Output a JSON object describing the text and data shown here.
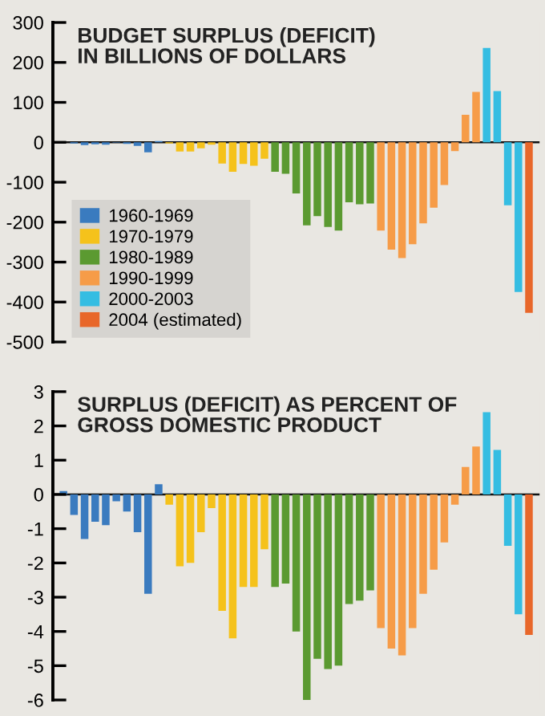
{
  "chart_data": [
    {
      "type": "bar",
      "title": "BUDGET SURPLUS (DEFICIT)\nIN BILLIONS OF DOLLARS",
      "categories": [
        null,
        null,
        null,
        null,
        null,
        null,
        null,
        null,
        null,
        null,
        null,
        null,
        null,
        null,
        null,
        null,
        null,
        null,
        null,
        null,
        null,
        null,
        null,
        null,
        null,
        null,
        null,
        null,
        null,
        null,
        null,
        null,
        null,
        null,
        null,
        null,
        null,
        null,
        null,
        null,
        null,
        null,
        null,
        null,
        null
      ],
      "series": [
        {
          "name": "1960-1969",
          "color": "#3a7bbf",
          "values": [
            0,
            -3,
            -7,
            -5,
            -6,
            -1,
            -4,
            -9,
            -25,
            3,
            null,
            null,
            null,
            null,
            null,
            null,
            null,
            null,
            null,
            null,
            null,
            null,
            null,
            null,
            null,
            null,
            null,
            null,
            null,
            null,
            null,
            null,
            null,
            null,
            null,
            null,
            null,
            null,
            null,
            null,
            null,
            null,
            null,
            null,
            null
          ]
        },
        {
          "name": "1970-1979",
          "color": "#f5c21b",
          "values": [
            null,
            null,
            null,
            null,
            null,
            null,
            null,
            null,
            null,
            null,
            -3,
            -23,
            -23,
            -15,
            -6,
            -53,
            -74,
            -54,
            -59,
            -41,
            null,
            null,
            null,
            null,
            null,
            null,
            null,
            null,
            null,
            null,
            null,
            null,
            null,
            null,
            null,
            null,
            null,
            null,
            null,
            null,
            null,
            null,
            null,
            null,
            null
          ]
        },
        {
          "name": "1980-1989",
          "color": "#5b9a31",
          "values": [
            null,
            null,
            null,
            null,
            null,
            null,
            null,
            null,
            null,
            null,
            null,
            null,
            null,
            null,
            null,
            null,
            null,
            null,
            null,
            null,
            -74,
            -79,
            -128,
            -208,
            -185,
            -212,
            -221,
            -150,
            -155,
            -153,
            null,
            null,
            null,
            null,
            null,
            null,
            null,
            null,
            null,
            null,
            null,
            null,
            null,
            null,
            null
          ]
        },
        {
          "name": "1990-1999",
          "color": "#f69c48",
          "values": [
            null,
            null,
            null,
            null,
            null,
            null,
            null,
            null,
            null,
            null,
            null,
            null,
            null,
            null,
            null,
            null,
            null,
            null,
            null,
            null,
            null,
            null,
            null,
            null,
            null,
            null,
            null,
            null,
            null,
            null,
            -221,
            -269,
            -290,
            -255,
            -203,
            -164,
            -107,
            -22,
            69,
            126,
            null,
            null,
            null,
            null,
            null
          ]
        },
        {
          "name": "2000-2003",
          "color": "#35bde2",
          "values": [
            null,
            null,
            null,
            null,
            null,
            null,
            null,
            null,
            null,
            null,
            null,
            null,
            null,
            null,
            null,
            null,
            null,
            null,
            null,
            null,
            null,
            null,
            null,
            null,
            null,
            null,
            null,
            null,
            null,
            null,
            null,
            null,
            null,
            null,
            null,
            null,
            null,
            null,
            null,
            null,
            236,
            128,
            -158,
            -375,
            null
          ]
        },
        {
          "name": "2004 (estimated)",
          "color": "#e8672a",
          "values": [
            null,
            null,
            null,
            null,
            null,
            null,
            null,
            null,
            null,
            null,
            null,
            null,
            null,
            null,
            null,
            null,
            null,
            null,
            null,
            null,
            null,
            null,
            null,
            null,
            null,
            null,
            null,
            null,
            null,
            null,
            null,
            null,
            null,
            null,
            null,
            null,
            null,
            null,
            null,
            null,
            null,
            null,
            null,
            null,
            -427
          ]
        }
      ],
      "ylim": [
        -500,
        300
      ],
      "yticks": [
        -500,
        -400,
        -300,
        -200,
        -100,
        0,
        100,
        200,
        300
      ],
      "legend": "bottom left",
      "ref_lines": [
        {
          "axis": "y",
          "value": 0
        }
      ]
    },
    {
      "type": "bar",
      "title": "SURPLUS (DEFICIT) AS PERCENT OF\nGROSS DOMESTIC PRODUCT",
      "categories": [
        null,
        null,
        null,
        null,
        null,
        null,
        null,
        null,
        null,
        null,
        null,
        null,
        null,
        null,
        null,
        null,
        null,
        null,
        null,
        null,
        null,
        null,
        null,
        null,
        null,
        null,
        null,
        null,
        null,
        null,
        null,
        null,
        null,
        null,
        null,
        null,
        null,
        null,
        null,
        null,
        null,
        null,
        null,
        null,
        null
      ],
      "series": [
        {
          "color": "#3a7bbf",
          "values": [
            0.1,
            -0.6,
            -1.3,
            -0.8,
            -0.9,
            -0.2,
            -0.5,
            -1.1,
            -2.9,
            0.3,
            null,
            null,
            null,
            null,
            null,
            null,
            null,
            null,
            null,
            null,
            null,
            null,
            null,
            null,
            null,
            null,
            null,
            null,
            null,
            null,
            null,
            null,
            null,
            null,
            null,
            null,
            null,
            null,
            null,
            null,
            null,
            null,
            null,
            null,
            null
          ]
        },
        {
          "color": "#f5c21b",
          "values": [
            null,
            null,
            null,
            null,
            null,
            null,
            null,
            null,
            null,
            null,
            -0.3,
            -2.1,
            -2.0,
            -1.1,
            -0.4,
            -3.4,
            -4.2,
            -2.7,
            -2.7,
            -1.6,
            null,
            null,
            null,
            null,
            null,
            null,
            null,
            null,
            null,
            null,
            null,
            null,
            null,
            null,
            null,
            null,
            null,
            null,
            null,
            null,
            null,
            null,
            null,
            null,
            null
          ]
        },
        {
          "color": "#5b9a31",
          "values": [
            null,
            null,
            null,
            null,
            null,
            null,
            null,
            null,
            null,
            null,
            null,
            null,
            null,
            null,
            null,
            null,
            null,
            null,
            null,
            null,
            -2.7,
            -2.6,
            -4.0,
            -6.0,
            -4.8,
            -5.1,
            -5.0,
            -3.2,
            -3.1,
            -2.8,
            null,
            null,
            null,
            null,
            null,
            null,
            null,
            null,
            null,
            null,
            null,
            null,
            null,
            null,
            null
          ]
        },
        {
          "color": "#f69c48",
          "values": [
            null,
            null,
            null,
            null,
            null,
            null,
            null,
            null,
            null,
            null,
            null,
            null,
            null,
            null,
            null,
            null,
            null,
            null,
            null,
            null,
            null,
            null,
            null,
            null,
            null,
            null,
            null,
            null,
            null,
            null,
            -3.9,
            -4.5,
            -4.7,
            -3.9,
            -2.9,
            -2.2,
            -1.4,
            -0.3,
            0.8,
            1.4,
            null,
            null,
            null,
            null,
            null
          ]
        },
        {
          "color": "#35bde2",
          "values": [
            null,
            null,
            null,
            null,
            null,
            null,
            null,
            null,
            null,
            null,
            null,
            null,
            null,
            null,
            null,
            null,
            null,
            null,
            null,
            null,
            null,
            null,
            null,
            null,
            null,
            null,
            null,
            null,
            null,
            null,
            null,
            null,
            null,
            null,
            null,
            null,
            null,
            null,
            null,
            null,
            2.4,
            1.3,
            -1.5,
            -3.5,
            null
          ]
        },
        {
          "color": "#e8672a",
          "values": [
            null,
            null,
            null,
            null,
            null,
            null,
            null,
            null,
            null,
            null,
            null,
            null,
            null,
            null,
            null,
            null,
            null,
            null,
            null,
            null,
            null,
            null,
            null,
            null,
            null,
            null,
            null,
            null,
            null,
            null,
            null,
            null,
            null,
            null,
            null,
            null,
            null,
            null,
            null,
            null,
            null,
            null,
            null,
            null,
            -4.1
          ]
        }
      ],
      "ylim": [
        -6,
        3
      ],
      "yticks": [
        -6,
        -5,
        -4,
        -3,
        -2,
        -1,
        0,
        1,
        2,
        3
      ],
      "ref_lines": [
        {
          "axis": "y",
          "value": 0
        }
      ]
    }
  ]
}
